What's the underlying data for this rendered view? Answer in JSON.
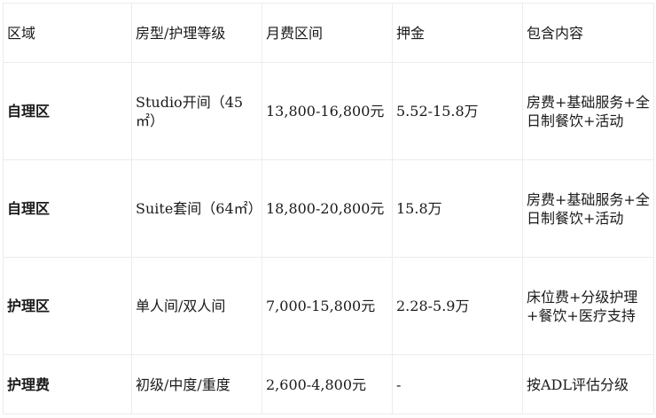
{
  "headers": [
    "区域",
    "房型/护理等级",
    "月费区间",
    "押金",
    "包含内容"
  ],
  "rows": [
    [
      "自理区",
      "Studio开间（45㎡）",
      "13,800-16,800元",
      "5.52-15.8万",
      "房费+基础服务+全日制餐饮+活动"
    ],
    [
      "自理区",
      "Suite套间（64㎡）",
      "18,800-20,800元",
      "15.8万",
      "房费+基础服务+全日制餐饮+活动"
    ],
    [
      "护理区",
      "单人间/双人间",
      "7,000-15,800元",
      "2.28-5.9万",
      "床位费+分级护理+餐饮+医疗支持"
    ],
    [
      "护理费",
      "初级/中度/重度",
      "2,600-4,800元",
      "-",
      "按ADL评估分级"
    ]
  ]
}
